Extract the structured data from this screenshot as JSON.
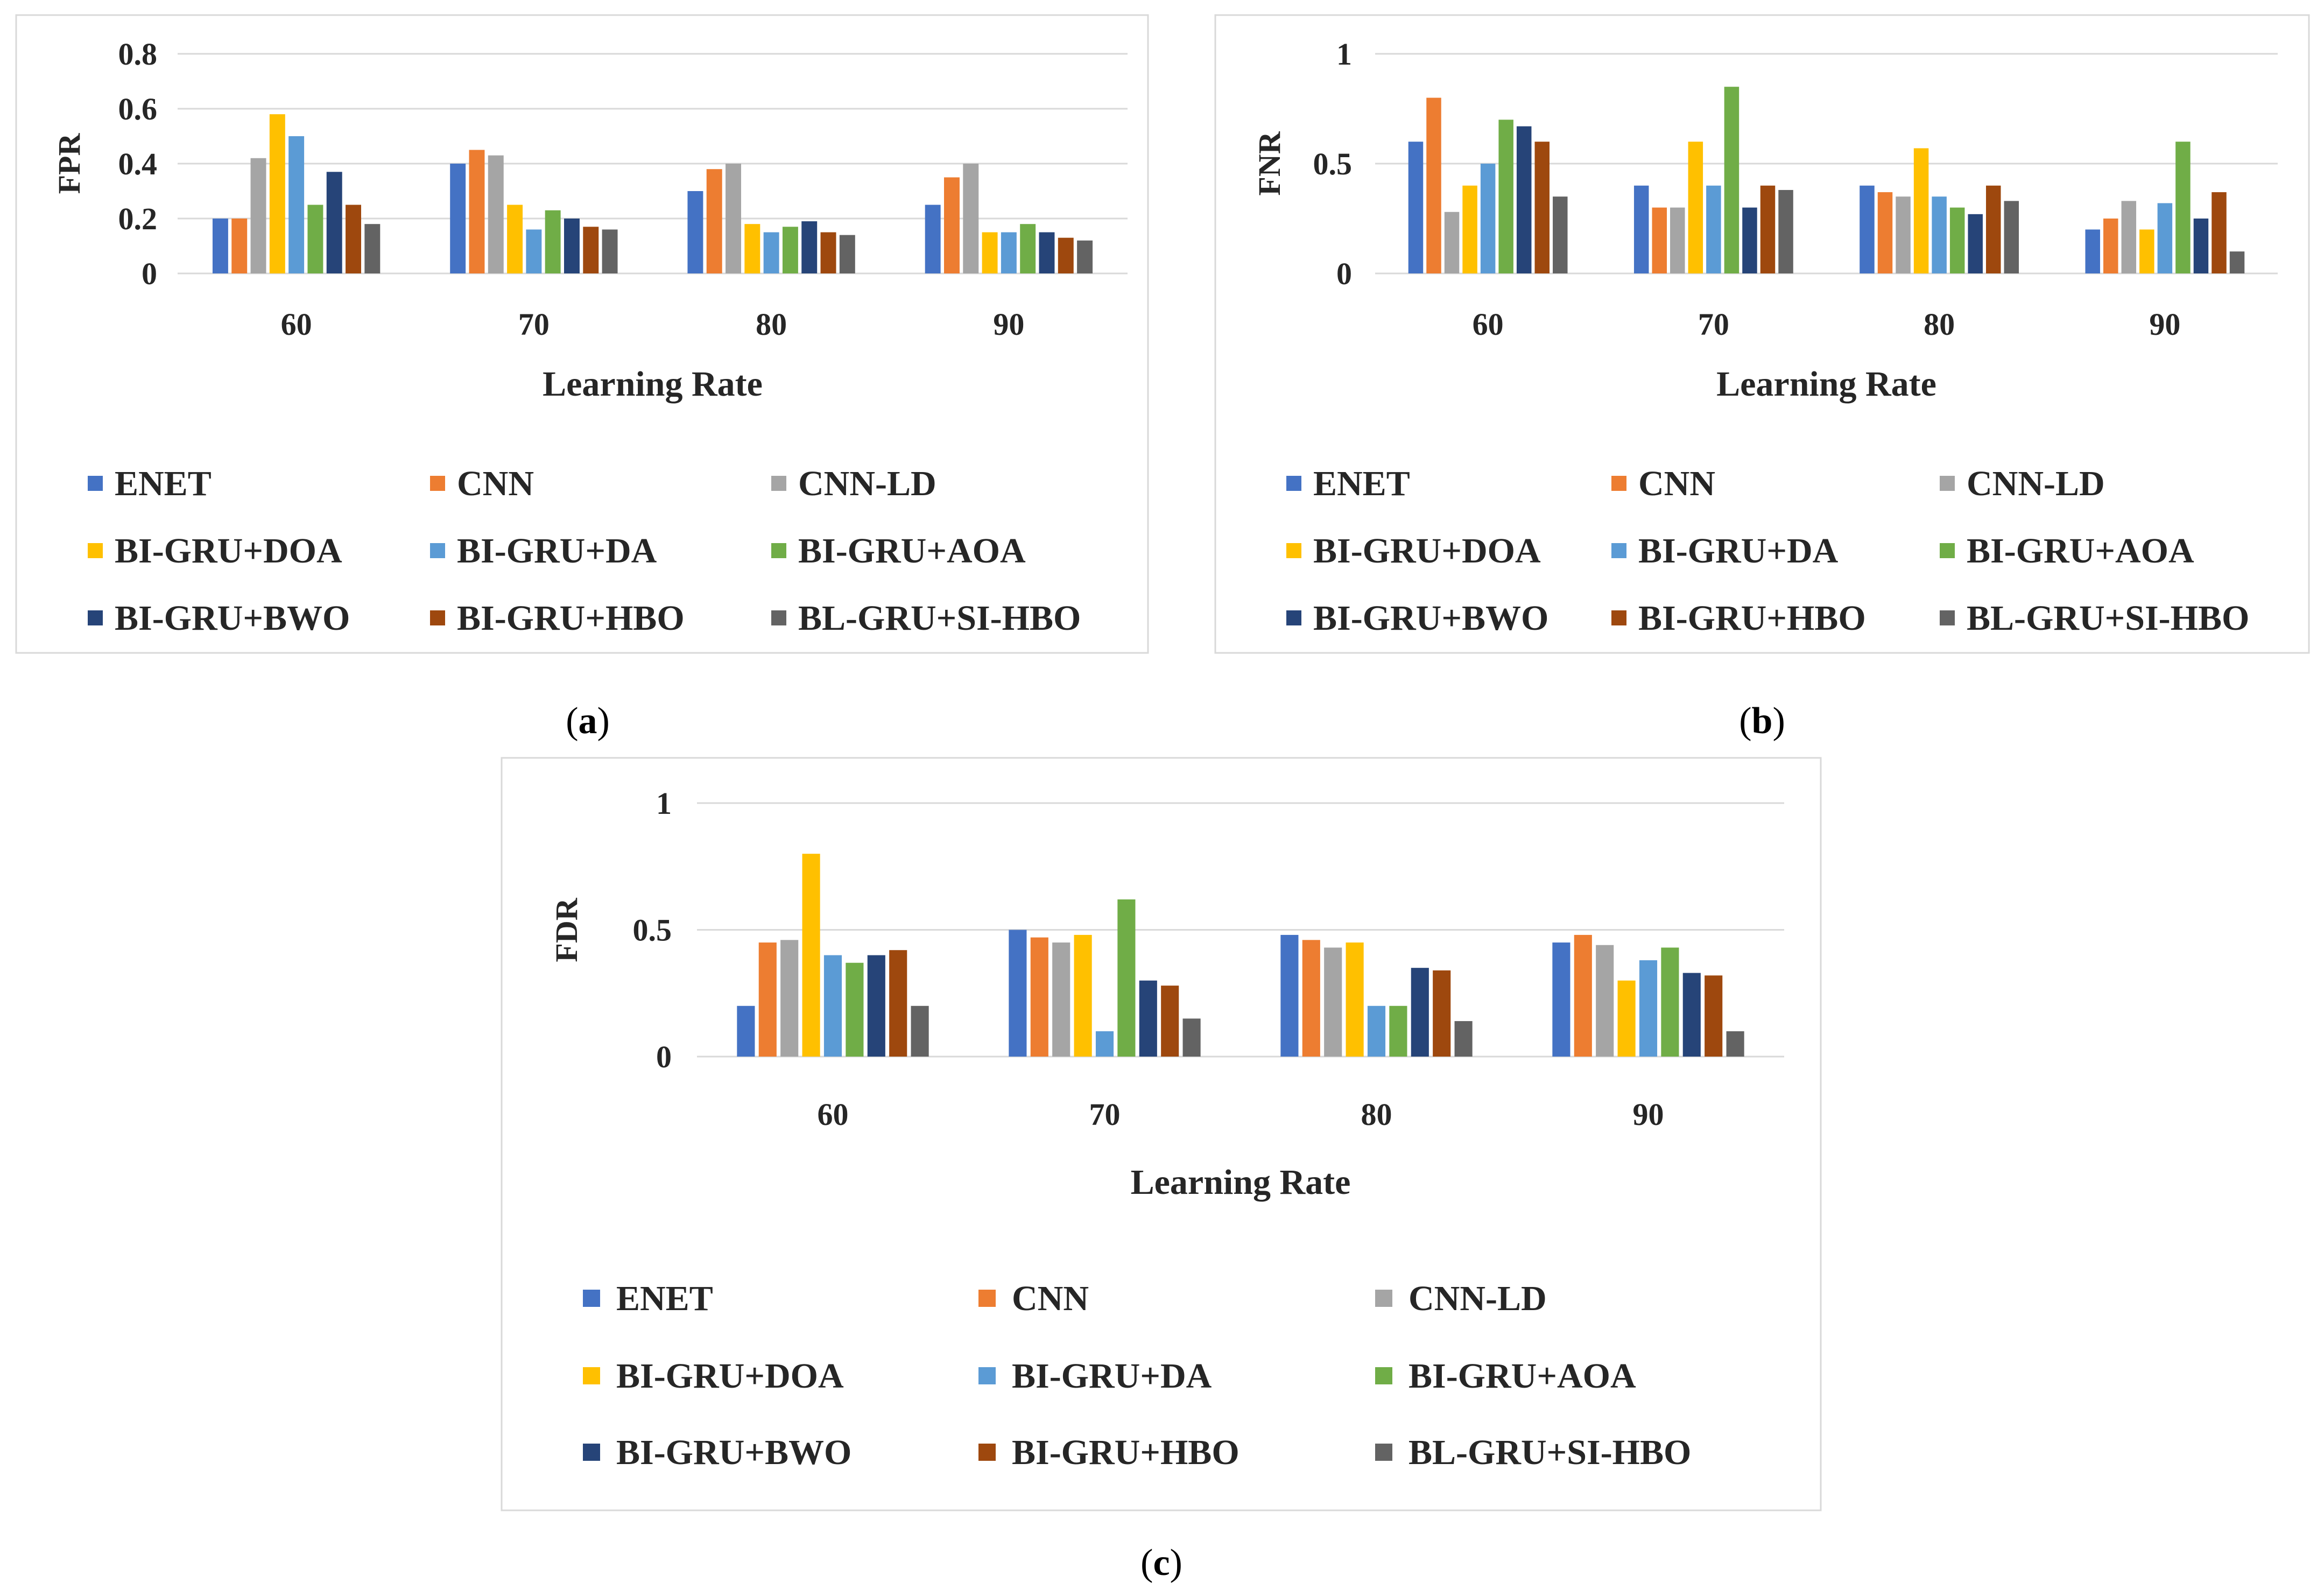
{
  "colors": [
    "#4472C4",
    "#ED7D31",
    "#A5A5A5",
    "#FFC000",
    "#5B9BD5",
    "#70AD47",
    "#264478",
    "#9E480E",
    "#636363"
  ],
  "legend": [
    "ENET",
    "CNN",
    "CNN-LD",
    "BI-GRU+DOA",
    "BI-GRU+DA",
    "BI-GRU+AOA",
    "BI-GRU+BWO",
    "BI-GRU+HBO",
    "BL-GRU+SI-HBO"
  ],
  "chart_data": [
    {
      "id": "a",
      "type": "bar",
      "caption": "a",
      "title": "",
      "xlabel": "Learning Rate",
      "ylabel": "FPR",
      "ylim": [
        0,
        0.8
      ],
      "yticks": [
        "0",
        "0.2",
        "0.4",
        "0.6",
        "0.8"
      ],
      "ytick_values": [
        0,
        0.2,
        0.4,
        0.6,
        0.8
      ],
      "categories": [
        "60",
        "70",
        "80",
        "90"
      ],
      "series": [
        {
          "name": "ENET",
          "values": [
            0.2,
            0.4,
            0.3,
            0.25
          ]
        },
        {
          "name": "CNN",
          "values": [
            0.2,
            0.45,
            0.38,
            0.35
          ]
        },
        {
          "name": "CNN-LD",
          "values": [
            0.42,
            0.43,
            0.4,
            0.4
          ]
        },
        {
          "name": "BI-GRU+DOA",
          "values": [
            0.58,
            0.25,
            0.18,
            0.15
          ]
        },
        {
          "name": "BI-GRU+DA",
          "values": [
            0.5,
            0.16,
            0.15,
            0.15
          ]
        },
        {
          "name": "BI-GRU+AOA",
          "values": [
            0.25,
            0.23,
            0.17,
            0.18
          ]
        },
        {
          "name": "BI-GRU+BWO",
          "values": [
            0.37,
            0.2,
            0.19,
            0.15
          ]
        },
        {
          "name": "BI-GRU+HBO",
          "values": [
            0.25,
            0.17,
            0.15,
            0.13
          ]
        },
        {
          "name": "BL-GRU+SI-HBO",
          "values": [
            0.18,
            0.16,
            0.14,
            0.12
          ]
        }
      ]
    },
    {
      "id": "b",
      "type": "bar",
      "caption": "b",
      "title": "",
      "xlabel": "Learning Rate",
      "ylabel": "FNR",
      "ylim": [
        0,
        1
      ],
      "yticks": [
        "0",
        "0.5",
        "1"
      ],
      "ytick_values": [
        0,
        0.5,
        1
      ],
      "categories": [
        "60",
        "70",
        "80",
        "90"
      ],
      "series": [
        {
          "name": "ENET",
          "values": [
            0.6,
            0.4,
            0.4,
            0.2
          ]
        },
        {
          "name": "CNN",
          "values": [
            0.8,
            0.3,
            0.37,
            0.25
          ]
        },
        {
          "name": "CNN-LD",
          "values": [
            0.28,
            0.3,
            0.35,
            0.33
          ]
        },
        {
          "name": "BI-GRU+DOA",
          "values": [
            0.4,
            0.6,
            0.57,
            0.2
          ]
        },
        {
          "name": "BI-GRU+DA",
          "values": [
            0.5,
            0.4,
            0.35,
            0.32
          ]
        },
        {
          "name": "BI-GRU+AOA",
          "values": [
            0.7,
            0.85,
            0.3,
            0.6
          ]
        },
        {
          "name": "BI-GRU+BWO",
          "values": [
            0.67,
            0.3,
            0.27,
            0.25
          ]
        },
        {
          "name": "BI-GRU+HBO",
          "values": [
            0.6,
            0.4,
            0.4,
            0.37
          ]
        },
        {
          "name": "BL-GRU+SI-HBO",
          "values": [
            0.35,
            0.38,
            0.33,
            0.1
          ]
        }
      ]
    },
    {
      "id": "c",
      "type": "bar",
      "caption": "c",
      "title": "",
      "xlabel": "Learning Rate",
      "ylabel": "FDR",
      "ylim": [
        0,
        1
      ],
      "yticks": [
        "0",
        "0.5",
        "1"
      ],
      "ytick_values": [
        0,
        0.5,
        1
      ],
      "categories": [
        "60",
        "70",
        "80",
        "90"
      ],
      "series": [
        {
          "name": "ENET",
          "values": [
            0.2,
            0.5,
            0.48,
            0.45
          ]
        },
        {
          "name": "CNN",
          "values": [
            0.45,
            0.47,
            0.46,
            0.48
          ]
        },
        {
          "name": "CNN-LD",
          "values": [
            0.46,
            0.45,
            0.43,
            0.44
          ]
        },
        {
          "name": "BI-GRU+DOA",
          "values": [
            0.8,
            0.48,
            0.45,
            0.3
          ]
        },
        {
          "name": "BI-GRU+DA",
          "values": [
            0.4,
            0.1,
            0.2,
            0.38
          ]
        },
        {
          "name": "BI-GRU+AOA",
          "values": [
            0.37,
            0.62,
            0.2,
            0.43
          ]
        },
        {
          "name": "BI-GRU+BWO",
          "values": [
            0.4,
            0.3,
            0.35,
            0.33
          ]
        },
        {
          "name": "BI-GRU+HBO",
          "values": [
            0.42,
            0.28,
            0.34,
            0.32
          ]
        },
        {
          "name": "BL-GRU+SI-HBO",
          "values": [
            0.2,
            0.15,
            0.14,
            0.1
          ]
        }
      ]
    }
  ]
}
